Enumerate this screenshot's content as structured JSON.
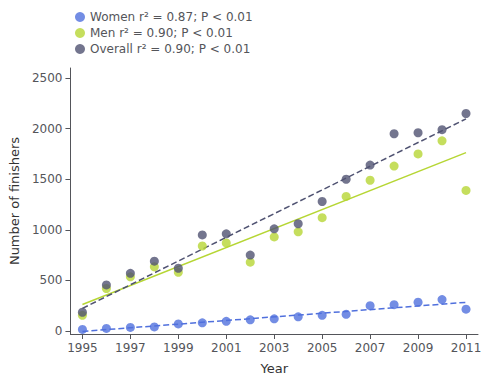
{
  "chart_data": {
    "type": "scatter",
    "xlabel": "Year",
    "ylabel": "Number of finishers",
    "x": [
      1995,
      1996,
      1997,
      1998,
      1999,
      2000,
      2001,
      2002,
      2003,
      2004,
      2005,
      2006,
      2007,
      2008,
      2009,
      2010,
      2011
    ],
    "series": [
      {
        "name": "Women r² = 0.87; P < 0.01",
        "marker": "circle",
        "values": [
          15,
          25,
          35,
          40,
          70,
          80,
          95,
          110,
          120,
          140,
          155,
          165,
          250,
          260,
          285,
          310,
          215
        ],
        "trendline": {
          "x": [
            1995,
            2011
          ],
          "values": [
            -4.12,
            282.94
          ],
          "line_style": "dashed"
        }
      },
      {
        "name": "Men r² = 0.90; P < 0.01",
        "marker": "circle",
        "values": [
          155,
          420,
          535,
          635,
          580,
          840,
          870,
          680,
          930,
          980,
          1120,
          1330,
          1490,
          1630,
          1750,
          1880,
          1390
        ],
        "trendline": {
          "x": [
            1995,
            2011
          ],
          "values": [
            262.16,
            1763.14
          ],
          "line_style": "solid"
        }
      },
      {
        "name": "Overall r² = 0.90; P < 0.01",
        "marker": "circle",
        "values": [
          185,
          455,
          570,
          690,
          620,
          950,
          960,
          750,
          1010,
          1060,
          1280,
          1500,
          1640,
          1950,
          1960,
          1990,
          2150
        ],
        "trendline": {
          "x": [
            1995,
            2011
          ],
          "values": [
            223.04,
            2096.96
          ],
          "line_style": "dashed"
        }
      }
    ],
    "xlim": [
      1994.5,
      2011.5
    ],
    "ylim": [
      -30,
      2600
    ],
    "xticks": [
      1995,
      1997,
      1999,
      2001,
      2003,
      2005,
      2007,
      2009,
      2011
    ],
    "yticks": [
      0,
      500,
      1000,
      1500,
      2000,
      2500
    ],
    "grid": false,
    "legend": "upper left"
  }
}
